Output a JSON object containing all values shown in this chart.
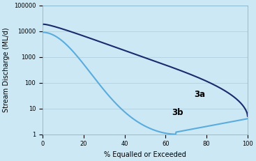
{
  "background_color": "#cce8f4",
  "line_3a_color": "#1a2a6c",
  "line_3b_color": "#5aacdd",
  "ylabel": "Stream Discharge (ML/d)",
  "xlabel": "% Equalled or Exceeded",
  "label_3a": "3a",
  "label_3b": "3b",
  "xlim": [
    0,
    100
  ],
  "ylim_log": [
    1,
    100000
  ],
  "yticks": [
    1,
    10,
    100,
    1000,
    10000,
    100000
  ],
  "xticks": [
    0,
    20,
    40,
    60,
    80,
    100
  ],
  "grid_color": "#b0cfe0",
  "label_fontsize": 7,
  "tick_fontsize": 6
}
